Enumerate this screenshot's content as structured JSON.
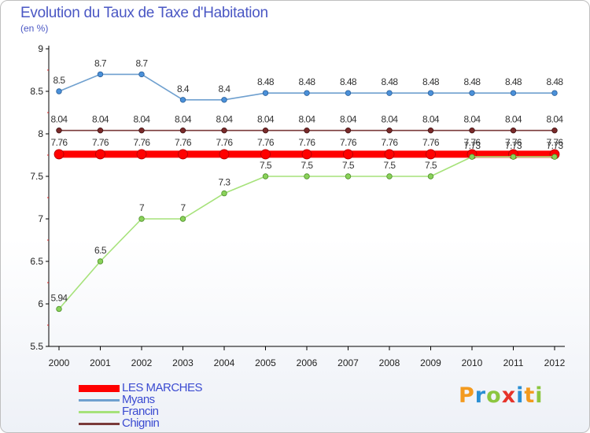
{
  "header": {
    "title": "Evolution du Taux de Taxe d'Habitation",
    "subtitle": "(en %)"
  },
  "chart_data": {
    "type": "line",
    "title": "Evolution du Taux de Taxe d'Habitation",
    "ylabel": "(en %)",
    "xlabel": "",
    "categories": [
      "2000",
      "2001",
      "2002",
      "2003",
      "2004",
      "2005",
      "2006",
      "2007",
      "2008",
      "2009",
      "2010",
      "2011",
      "2012"
    ],
    "ylim": [
      5.5,
      9
    ],
    "yticks": [
      "5.5",
      "6",
      "6.5",
      "7",
      "7.5",
      "8",
      "8.5",
      "9"
    ],
    "grid": false,
    "legend_position": "bottom-left",
    "series": [
      {
        "name": "LES MARCHES",
        "color": "#ff0000",
        "values": [
          7.76,
          7.76,
          7.76,
          7.76,
          7.76,
          7.76,
          7.76,
          7.76,
          7.76,
          7.76,
          7.76,
          7.76,
          7.76
        ],
        "labels": [
          "7.76",
          "7.76",
          "7.76",
          "7.76",
          "7.76",
          "7.76",
          "7.76",
          "7.76",
          "7.76",
          "7.76",
          "7.76",
          "7.76",
          "7.76"
        ]
      },
      {
        "name": "Myans",
        "color": "#6fa0cf",
        "values": [
          8.5,
          8.7,
          8.7,
          8.4,
          8.4,
          8.48,
          8.48,
          8.48,
          8.48,
          8.48,
          8.48,
          8.48,
          8.48
        ],
        "labels": [
          "8.5",
          "8.7",
          "8.7",
          "8.4",
          "8.4",
          "8.48",
          "8.48",
          "8.48",
          "8.48",
          "8.48",
          "8.48",
          "8.48",
          "8.48"
        ]
      },
      {
        "name": "Francin",
        "color": "#a6e27a",
        "values": [
          5.94,
          6.5,
          7,
          7,
          7.3,
          7.5,
          7.5,
          7.5,
          7.5,
          7.5,
          7.73,
          7.73,
          7.73
        ],
        "labels": [
          "5.94",
          "6.5",
          "7",
          "7",
          "7.3",
          "7.5",
          "7.5",
          "7.5",
          "7.5",
          "7.5",
          "7.73",
          "7.73",
          "7.73"
        ]
      },
      {
        "name": "Chignin",
        "color": "#7a3a3a",
        "values": [
          8.04,
          8.04,
          8.04,
          8.04,
          8.04,
          8.04,
          8.04,
          8.04,
          8.04,
          8.04,
          8.04,
          8.04,
          8.04
        ],
        "labels": [
          "8.04",
          "8.04",
          "8.04",
          "8.04",
          "8.04",
          "8.04",
          "8.04",
          "8.04",
          "8.04",
          "8.04",
          "8.04",
          "8.04",
          "8.04"
        ]
      }
    ]
  },
  "legend": {
    "items": [
      {
        "label": "LES MARCHES",
        "color": "#ff0000"
      },
      {
        "label": "Myans",
        "color": "#6fa0cf"
      },
      {
        "label": "Francin",
        "color": "#a6e27a"
      },
      {
        "label": "Chignin",
        "color": "#7a3a3a"
      }
    ]
  },
  "logo": {
    "text": "Proxiti",
    "colors": [
      "#f39a1e",
      "#2a8fd4",
      "#8cc63f",
      "#e6332a",
      "#2a8fd4",
      "#f39a1e",
      "#8cc63f"
    ]
  }
}
